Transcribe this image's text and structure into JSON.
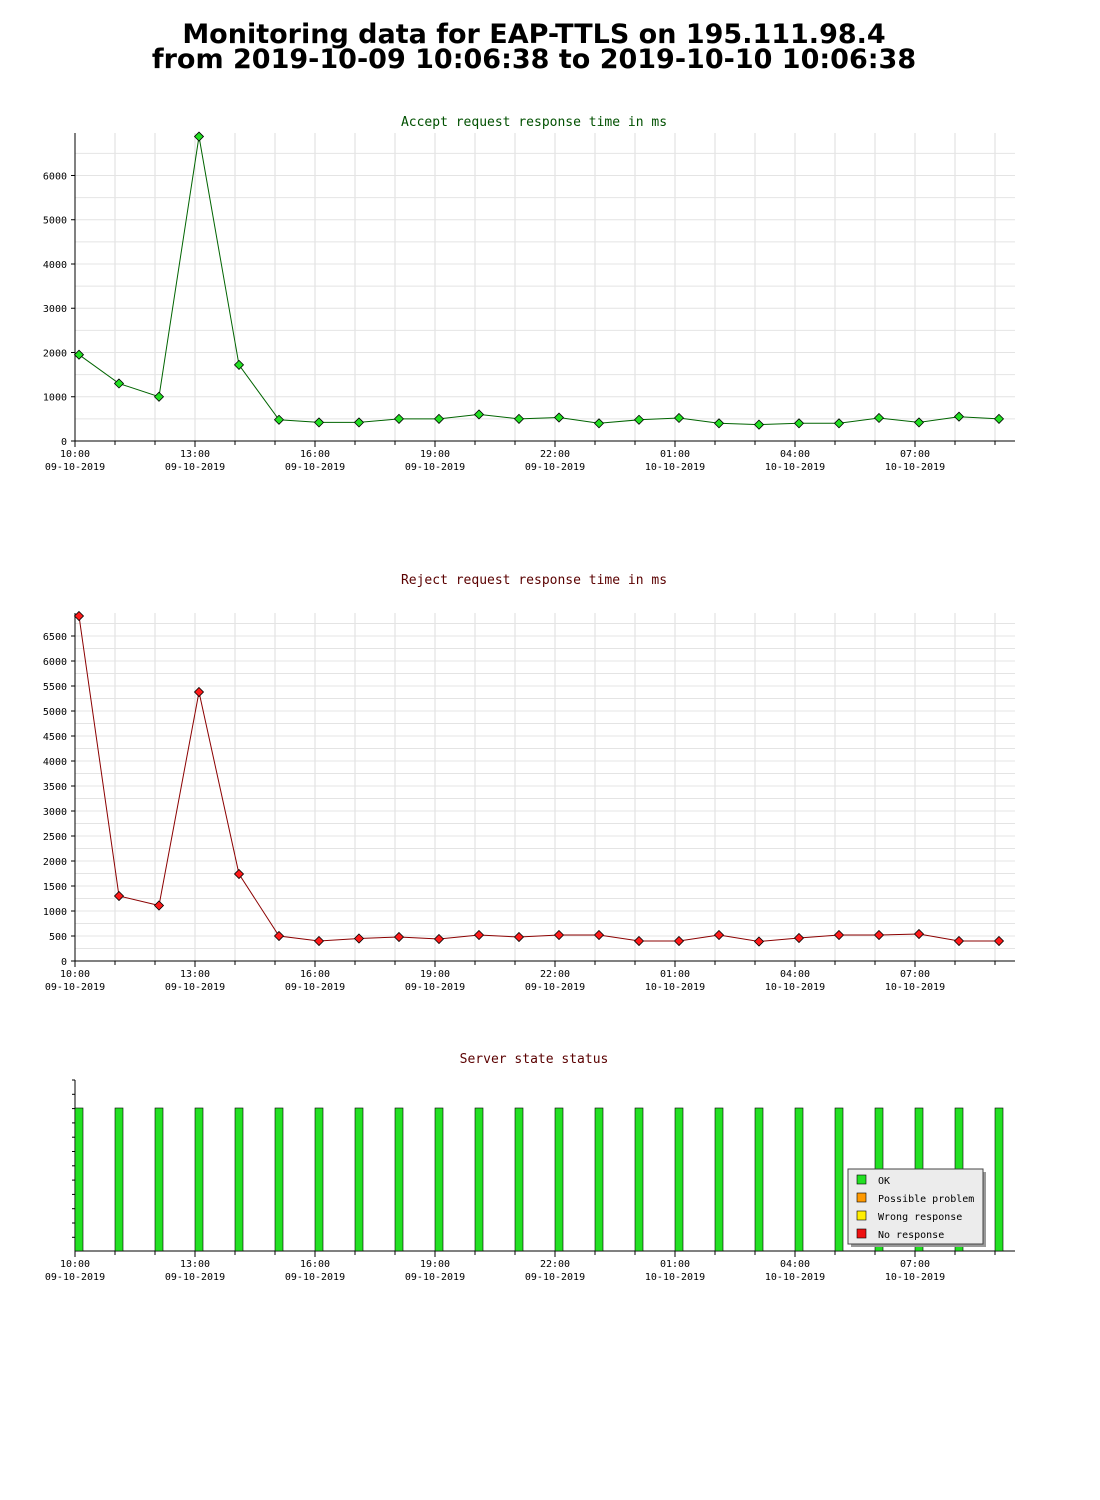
{
  "page": {
    "title_line1": "Monitoring data for EAP-TTLS on 195.111.98.4",
    "title_line2": "from 2019-10-09 10:06:38 to 2019-10-10 10:06:38"
  },
  "colors": {
    "accept_line": "#006400",
    "accept_marker": "#22e022",
    "accept_title": "#005000",
    "reject_line": "#8b0000",
    "reject_marker": "#ff1a1a",
    "reject_title": "#5a0000",
    "status_title": "#5a0000",
    "ok": "#22e022",
    "possible_problem": "#ff9900",
    "wrong_response": "#ffee00",
    "no_response": "#ee1111"
  },
  "chart_data": [
    {
      "type": "line",
      "title": "Accept request response time in ms",
      "x_tick_labels": [
        [
          "10:00",
          "09-10-2019"
        ],
        [
          "13:00",
          "09-10-2019"
        ],
        [
          "16:00",
          "09-10-2019"
        ],
        [
          "19:00",
          "09-10-2019"
        ],
        [
          "22:00",
          "09-10-2019"
        ],
        [
          "01:00",
          "10-10-2019"
        ],
        [
          "04:00",
          "10-10-2019"
        ],
        [
          "07:00",
          "10-10-2019"
        ]
      ],
      "x_range_hours": [
        10,
        33.5
      ],
      "x": [
        10.1,
        11.1,
        12.1,
        13.1,
        14.1,
        15.1,
        16.1,
        17.1,
        18.1,
        19.1,
        20.1,
        21.1,
        22.1,
        23.1,
        24.1,
        25.1,
        26.1,
        27.1,
        28.1,
        29.1,
        30.1,
        31.1,
        32.1,
        33.1
      ],
      "values": [
        1950,
        1300,
        1000,
        6880,
        1720,
        480,
        420,
        420,
        500,
        500,
        600,
        500,
        530,
        400,
        480,
        520,
        400,
        370,
        400,
        400,
        520,
        420,
        550,
        500
      ],
      "yticks": [
        0,
        1000,
        2000,
        3000,
        4000,
        5000,
        6000
      ],
      "ylim": [
        0,
        6960
      ],
      "grid": true
    },
    {
      "type": "line",
      "title": "Reject request response time in ms",
      "x_tick_labels": [
        [
          "10:00",
          "09-10-2019"
        ],
        [
          "13:00",
          "09-10-2019"
        ],
        [
          "16:00",
          "09-10-2019"
        ],
        [
          "19:00",
          "09-10-2019"
        ],
        [
          "22:00",
          "09-10-2019"
        ],
        [
          "01:00",
          "10-10-2019"
        ],
        [
          "04:00",
          "10-10-2019"
        ],
        [
          "07:00",
          "10-10-2019"
        ]
      ],
      "x_range_hours": [
        10,
        33.5
      ],
      "x": [
        10.1,
        11.1,
        12.1,
        13.1,
        14.1,
        15.1,
        16.1,
        17.1,
        18.1,
        19.1,
        20.1,
        21.1,
        22.1,
        23.1,
        24.1,
        25.1,
        26.1,
        27.1,
        28.1,
        29.1,
        30.1,
        31.1,
        32.1,
        33.1
      ],
      "values": [
        6900,
        1300,
        1110,
        5380,
        1740,
        500,
        400,
        450,
        480,
        440,
        520,
        480,
        520,
        520,
        400,
        400,
        520,
        390,
        460,
        520,
        520,
        540,
        400,
        400
      ],
      "yticks": [
        0,
        500,
        1000,
        1500,
        2000,
        2500,
        3000,
        3500,
        4000,
        4500,
        5000,
        5500,
        6000,
        6500
      ],
      "ylim": [
        0,
        6960
      ],
      "grid": true
    },
    {
      "type": "bar",
      "title": "Server state status",
      "x_tick_labels": [
        [
          "10:00",
          "09-10-2019"
        ],
        [
          "13:00",
          "09-10-2019"
        ],
        [
          "16:00",
          "09-10-2019"
        ],
        [
          "19:00",
          "09-10-2019"
        ],
        [
          "22:00",
          "09-10-2019"
        ],
        [
          "01:00",
          "10-10-2019"
        ],
        [
          "04:00",
          "10-10-2019"
        ],
        [
          "07:00",
          "10-10-2019"
        ]
      ],
      "x_range_hours": [
        10,
        33.5
      ],
      "x": [
        10.1,
        11.1,
        12.1,
        13.1,
        14.1,
        15.1,
        16.1,
        17.1,
        18.1,
        19.1,
        20.1,
        21.1,
        22.1,
        23.1,
        24.1,
        25.1,
        26.1,
        27.1,
        28.1,
        29.1,
        30.1,
        31.1,
        32.1,
        33.1
      ],
      "states": [
        "OK",
        "OK",
        "OK",
        "OK",
        "OK",
        "OK",
        "OK",
        "OK",
        "OK",
        "OK",
        "OK",
        "OK",
        "OK",
        "OK",
        "OK",
        "OK",
        "OK",
        "OK",
        "OK",
        "OK",
        "OK",
        "OK",
        "OK",
        "OK"
      ],
      "legend": [
        "OK",
        "Possible problem",
        "Wrong response",
        "No response"
      ],
      "legend_position": "right"
    }
  ]
}
